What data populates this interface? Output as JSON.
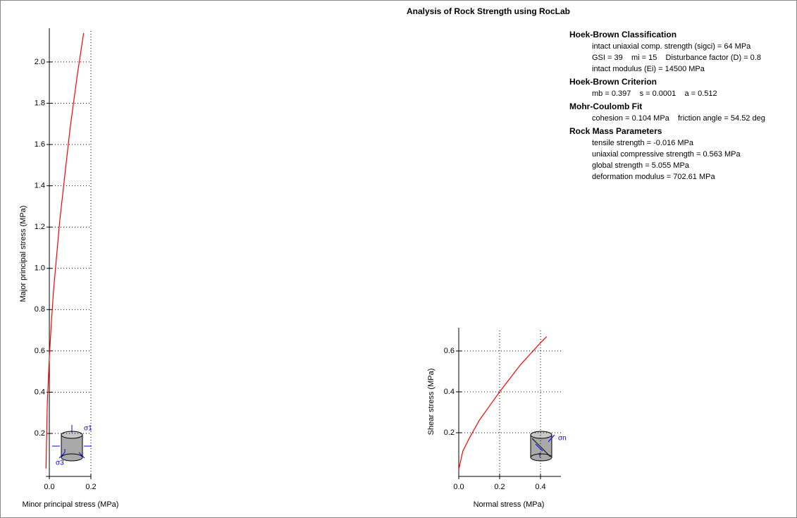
{
  "title": "Analysis of Rock Strength using RocLab",
  "chart_data": [
    {
      "type": "line",
      "x_label": "Minor principal stress (MPa)",
      "y_label": "Major principal stress (MPa)",
      "x": [
        -0.016,
        -0.01,
        0,
        0.01,
        0.02,
        0.05,
        0.1,
        0.135,
        0.165
      ],
      "values": [
        0.03,
        0.34,
        0.57,
        0.74,
        0.89,
        1.23,
        1.68,
        1.94,
        2.14
      ],
      "color": "#ff0000",
      "xlim": [
        -0.016,
        0.2
      ],
      "ylim": [
        0,
        2.15
      ],
      "xticks": [
        {
          "value": 0,
          "label": "0.0"
        },
        0.2
      ],
      "yticks": [
        0.2,
        0.4,
        0.6,
        0.8,
        {
          "value": 1,
          "label": "1.0"
        },
        1.2,
        1.4,
        1.6,
        1.8,
        {
          "value": 2,
          "label": "2.0"
        }
      ],
      "grid": true,
      "icon_labels": [
        "σ1",
        "σ3"
      ]
    },
    {
      "type": "line",
      "x_label": "Normal stress (MPa)",
      "y_label": "Shear stress (MPa)",
      "x": [
        0,
        0.02,
        0.05,
        0.1,
        0.15,
        0.2,
        0.3,
        0.4,
        0.43
      ],
      "values": [
        0.02,
        0.11,
        0.17,
        0.26,
        0.33,
        0.4,
        0.53,
        0.64,
        0.67
      ],
      "color": "#ff0000",
      "xlim": [
        0,
        0.5
      ],
      "ylim": [
        0,
        0.7
      ],
      "xticks": [
        {
          "value": 0,
          "label": "0.0"
        },
        0.2,
        0.4
      ],
      "yticks": [
        0.2,
        0.4,
        0.6
      ],
      "grid": true,
      "icon_labels": [
        "σn",
        "τ"
      ]
    }
  ],
  "panel": [
    {
      "heading": "Hoek-Brown Classification",
      "lines": [
        "intact uniaxial comp. strength (sigci) = 64 MPa",
        "GSI = 39    mi = 15    Disturbance factor (D) = 0.8",
        "intact modulus (Ei) = 14500 MPa"
      ]
    },
    {
      "heading": "Hoek-Brown Criterion",
      "lines": [
        "mb = 0.397    s = 0.0001    a = 0.512"
      ]
    },
    {
      "heading": "Mohr-Coulomb Fit",
      "lines": [
        "cohesion = 0.104 MPa    friction angle = 54.52 deg"
      ]
    },
    {
      "heading": "Rock Mass Parameters",
      "lines": [
        "tensile strength = -0.016 MPa",
        "uniaxial compressive strength = 0.563 MPa",
        "global strength = 5.055 MPa",
        "deformation modulus = 702.61 MPa"
      ]
    }
  ]
}
